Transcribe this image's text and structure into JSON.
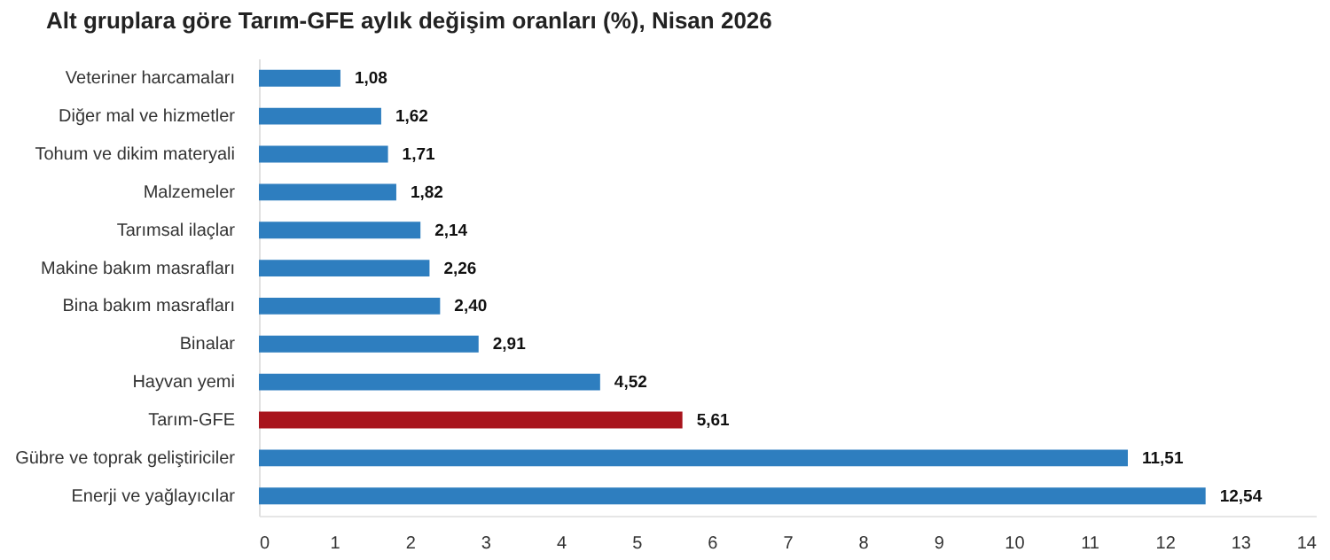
{
  "chart_data": {
    "type": "bar",
    "orientation": "horizontal",
    "title": "Alt gruplara göre Tarım-GFE aylık değişim oranları (%), Nisan 2026",
    "categories": [
      "Veteriner harcamaları",
      "Diğer mal ve hizmetler",
      "Tohum ve dikim materyali",
      "Malzemeler",
      "Tarımsal ilaçlar",
      "Makine bakım masrafları",
      "Bina bakım masrafları",
      "Binalar",
      "Hayvan yemi",
      "Tarım-GFE",
      "Gübre ve toprak geliştiriciler",
      "Enerji  ve yağlayıcılar"
    ],
    "values": [
      1.08,
      1.62,
      1.71,
      1.82,
      2.14,
      2.26,
      2.4,
      2.91,
      4.52,
      5.61,
      11.51,
      12.54
    ],
    "colors": [
      "#2e7ebf",
      "#2e7ebf",
      "#2e7ebf",
      "#2e7ebf",
      "#2e7ebf",
      "#2e7ebf",
      "#2e7ebf",
      "#2e7ebf",
      "#2e7ebf",
      "#a8141c",
      "#2e7ebf",
      "#2e7ebf"
    ],
    "value_labels": [
      "1,08",
      "1,62",
      "1,71",
      "1,82",
      "2,14",
      "2,26",
      "2,40",
      "2,91",
      "4,52",
      "5,61",
      "11,51",
      "12,54"
    ],
    "xlim": [
      0,
      14
    ],
    "xticks": [
      0,
      1,
      2,
      3,
      4,
      5,
      6,
      7,
      8,
      9,
      10,
      11,
      12,
      13,
      14
    ],
    "grid": false
  }
}
